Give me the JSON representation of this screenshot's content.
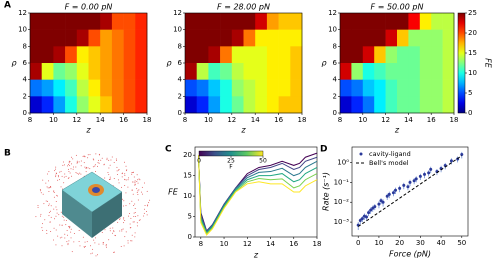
{
  "chart_data": [
    {
      "type": "heatmap",
      "panel_label": "A",
      "title": "F = 0.00 pN",
      "x_label": "z",
      "y_label": "ρ",
      "x": [
        8.5,
        9.5,
        10.5,
        11.5,
        12.5,
        13.5,
        14.5,
        15.5,
        16.5,
        17.5
      ],
      "y": [
        11,
        9,
        7,
        5,
        3,
        1
      ],
      "values": [
        [
          25,
          25,
          25,
          25,
          25,
          25,
          24,
          20,
          20,
          21
        ],
        [
          25,
          25,
          25,
          25,
          24,
          20,
          18,
          19,
          20,
          21
        ],
        [
          25,
          25,
          24,
          20,
          16,
          17,
          18,
          19,
          20,
          21
        ],
        [
          24,
          15,
          12,
          13,
          15,
          17,
          18,
          19,
          20,
          21
        ],
        [
          6,
          7,
          9,
          11,
          14,
          16,
          18,
          19,
          20,
          21
        ],
        [
          2,
          4,
          7,
          10,
          13,
          15,
          17,
          19,
          20,
          21
        ]
      ],
      "xlim": [
        8,
        18
      ],
      "ylim": [
        0,
        12
      ],
      "xticks": [
        8,
        10,
        12,
        14,
        16,
        18
      ],
      "yticks": [
        0,
        2,
        4,
        6,
        8,
        10,
        12
      ],
      "colormap": "jet",
      "clim": [
        0,
        25
      ]
    },
    {
      "type": "heatmap",
      "title": "F = 28.00 pN",
      "x_label": "z",
      "y_label": "ρ",
      "x": [
        8.5,
        9.5,
        10.5,
        11.5,
        12.5,
        13.5,
        14.5,
        15.5,
        16.5,
        17.5
      ],
      "y": [
        11,
        9,
        7,
        5,
        3,
        1
      ],
      "values": [
        [
          25,
          25,
          25,
          25,
          25,
          25,
          23,
          18,
          17,
          17
        ],
        [
          25,
          25,
          25,
          25,
          24,
          19,
          16,
          16,
          16,
          16
        ],
        [
          25,
          25,
          24,
          19,
          15,
          15,
          15,
          16,
          16,
          17
        ],
        [
          24,
          14,
          11,
          12,
          14,
          15,
          15,
          16,
          16,
          17
        ],
        [
          5,
          6,
          8,
          10,
          13,
          14,
          15,
          16,
          16,
          17
        ],
        [
          2,
          4,
          7,
          10,
          12,
          14,
          15,
          16,
          17,
          17
        ]
      ],
      "xlim": [
        8,
        18
      ],
      "ylim": [
        0,
        12
      ],
      "xticks": [
        8,
        10,
        12,
        14,
        16,
        18
      ],
      "yticks": [
        0,
        2,
        4,
        6,
        8,
        10,
        12
      ],
      "colormap": "jet",
      "clim": [
        0,
        25
      ]
    },
    {
      "type": "heatmap",
      "title": "F = 50.00 pN",
      "x_label": "z",
      "y_label": "ρ",
      "x": [
        8.5,
        9.5,
        10.5,
        11.5,
        12.5,
        13.5,
        14.5,
        15.5,
        16.5,
        17.5
      ],
      "y": [
        11,
        9,
        7,
        5,
        3,
        1
      ],
      "values": [
        [
          25,
          25,
          25,
          25,
          25,
          25,
          22,
          16,
          14,
          14
        ],
        [
          25,
          25,
          25,
          25,
          23,
          17,
          13,
          13,
          13,
          14
        ],
        [
          25,
          25,
          23,
          17,
          13,
          12,
          12,
          13,
          13,
          14
        ],
        [
          23,
          13,
          10,
          11,
          12,
          12,
          12,
          13,
          13,
          14
        ],
        [
          5,
          6,
          8,
          9,
          11,
          12,
          12,
          13,
          13,
          14
        ],
        [
          2,
          4,
          6,
          9,
          11,
          12,
          12,
          13,
          13,
          14
        ]
      ],
      "xlim": [
        8,
        18
      ],
      "ylim": [
        0,
        12
      ],
      "xticks": [
        8,
        10,
        12,
        14,
        16,
        18
      ],
      "yticks": [
        0,
        2,
        4,
        6,
        8,
        10,
        12
      ],
      "colormap": "jet",
      "clim": [
        0,
        25
      ],
      "colorbar": {
        "label": "FE",
        "ticks": [
          0,
          5,
          10,
          15,
          20,
          25
        ]
      }
    },
    {
      "type": "image",
      "panel_label": "B"
    },
    {
      "type": "line",
      "panel_label": "C",
      "x_label": "z",
      "y_label": "FE",
      "x": [
        7.8,
        8,
        8.5,
        9,
        10,
        11,
        12,
        13,
        14,
        15,
        16,
        16.5,
        17,
        18
      ],
      "series": [
        {
          "color": "#440154",
          "values": [
            20,
            6,
            1.5,
            3,
            8,
            12,
            15.5,
            17,
            17.5,
            18.5,
            17.5,
            18,
            19.5,
            20.5
          ]
        },
        {
          "color": "#414487",
          "values": [
            20,
            5.5,
            1.4,
            3,
            8,
            12,
            15,
            16.5,
            17,
            18,
            16.5,
            17,
            18.5,
            19.5
          ]
        },
        {
          "color": "#2a788e",
          "values": [
            20,
            5,
            1.2,
            2.8,
            7.8,
            11.8,
            14.5,
            15.8,
            16,
            16.8,
            15,
            15.5,
            17,
            18.5
          ]
        },
        {
          "color": "#22a884",
          "values": [
            20,
            4.5,
            1,
            2.5,
            7.5,
            11.5,
            14,
            15,
            15,
            15.5,
            13.5,
            14,
            15.5,
            17
          ]
        },
        {
          "color": "#7ad151",
          "values": [
            20,
            4,
            0.8,
            2.2,
            7.2,
            11.2,
            13.5,
            14.3,
            14,
            14.2,
            12,
            12.5,
            14,
            15.5
          ]
        },
        {
          "color": "#fde725",
          "values": [
            20,
            3.5,
            0.5,
            2,
            7,
            11,
            13,
            13.5,
            13,
            13,
            11,
            11,
            12.5,
            14
          ]
        }
      ],
      "xlim": [
        7.5,
        18
      ],
      "ylim": [
        0,
        22
      ],
      "xticks": [
        8,
        10,
        12,
        14,
        16,
        18
      ],
      "yticks": [
        0,
        5,
        10,
        15,
        20
      ],
      "colorbar": {
        "label": "F",
        "lim": [
          0,
          50
        ],
        "ticks": [
          0,
          25,
          50
        ]
      }
    },
    {
      "type": "scatter",
      "panel_label": "D",
      "x_label": "Force (pN)",
      "y_label": "Rate (s⁻¹)",
      "log_y": true,
      "series": [
        {
          "name": "cavity-ligand",
          "color": "#2b3a9a",
          "x": [
            0,
            1,
            2,
            3,
            4,
            5,
            6,
            7,
            8,
            10,
            11,
            12,
            14,
            15,
            17,
            18,
            20,
            22,
            24,
            25,
            27,
            28,
            30,
            32,
            34,
            35,
            38,
            40,
            42,
            45,
            48,
            50
          ],
          "values": [
            0.0007,
            0.0012,
            0.0015,
            0.002,
            0.0018,
            0.003,
            0.004,
            0.005,
            0.006,
            0.008,
            0.012,
            0.01,
            0.02,
            0.025,
            0.03,
            0.04,
            0.05,
            0.07,
            0.06,
            0.1,
            0.12,
            0.15,
            0.2,
            0.25,
            0.3,
            0.45,
            0.35,
            0.5,
            0.7,
            1.2,
            1.5,
            2.5
          ],
          "errors": [
            0.0003,
            0.0004,
            0.0005,
            0.0007,
            0.0006,
            0.001,
            0.0014,
            0.0017,
            0.002,
            0.003,
            0.004,
            0.004,
            0.007,
            0.009,
            0.01,
            0.014,
            0.018,
            0.025,
            0.02,
            0.035,
            0.04,
            0.05,
            0.07,
            0.09,
            0.1,
            0.16,
            0.12,
            0.18,
            0.25,
            0.4,
            0.5,
            0.9
          ]
        },
        {
          "name": "Bell's model",
          "color": "#000000",
          "style": "dashed",
          "x": [
            0,
            50
          ],
          "values": [
            0.0006,
            2.2
          ]
        }
      ],
      "xlim": [
        -3,
        53
      ],
      "ylim": [
        0.0002,
        6
      ],
      "xticks": [
        0,
        10,
        20,
        30,
        40,
        50
      ],
      "yticks": [
        {
          "value": 0.001,
          "label": "10⁻³"
        },
        {
          "value": 0.01,
          "label": "10⁻²"
        },
        {
          "value": 0.1,
          "label": "10⁻¹"
        },
        {
          "value": 1,
          "label": "10⁰"
        }
      ],
      "legend": "upper left"
    }
  ]
}
